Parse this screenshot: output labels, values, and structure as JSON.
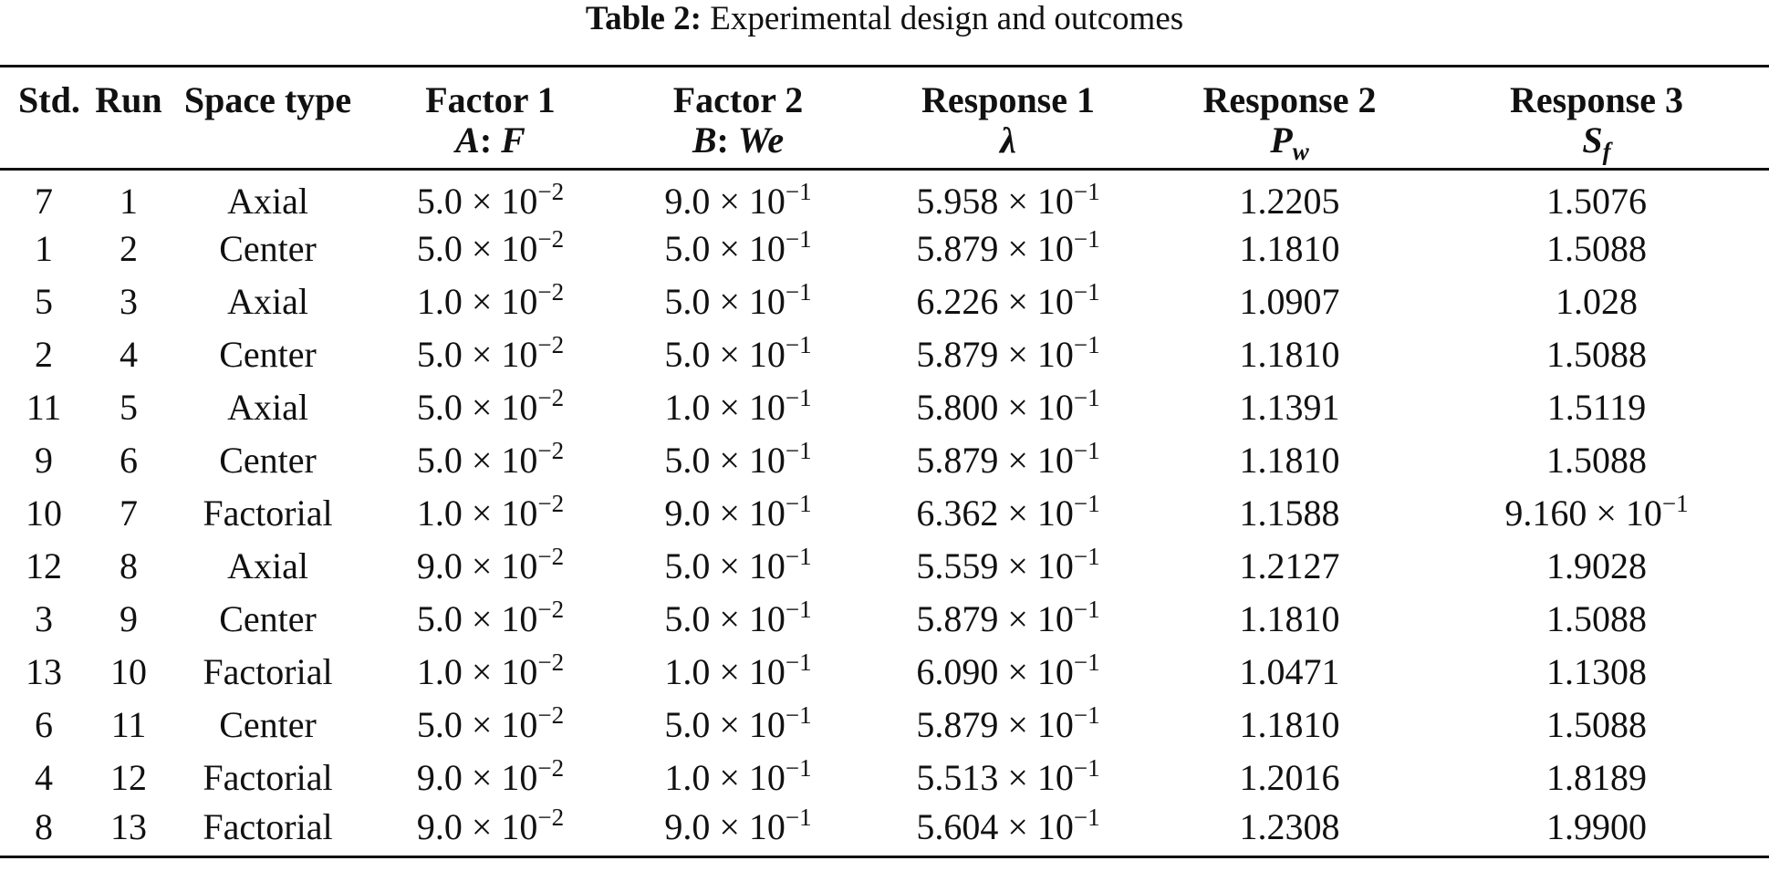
{
  "caption": {
    "label": "Table 2:",
    "text": " Experimental design and outcomes"
  },
  "table": {
    "headers_top": [
      "Std.",
      "Run",
      "Space type",
      "Factor 1",
      "Factor 2",
      "Response 1",
      "Response 2",
      "Response 3"
    ],
    "headers_bottom": [
      {
        "main": "A",
        "sep": ": ",
        "tail": "F",
        "sub": ""
      },
      {
        "main": "B",
        "sep": ": ",
        "tail": "We",
        "sub": ""
      },
      {
        "main": "λ",
        "sep": "",
        "tail": "",
        "sub": ""
      },
      {
        "main": "P",
        "sep": "",
        "tail": "",
        "sub": "w"
      },
      {
        "main": "S",
        "sep": "",
        "tail": "",
        "sub": "f"
      }
    ],
    "rows": [
      {
        "std": "7",
        "run": "1",
        "space": "Axial",
        "f1": "5.0 × 10",
        "f1e": "−2",
        "f2": "9.0 × 10",
        "f2e": "−1",
        "r1": "5.958 × 10",
        "r1e": "−1",
        "r2": "1.2205",
        "r3": "1.5076",
        "r3e": ""
      },
      {
        "std": "1",
        "run": "2",
        "space": "Center",
        "f1": "5.0 × 10",
        "f1e": "−2",
        "f2": "5.0 × 10",
        "f2e": "−1",
        "r1": "5.879 × 10",
        "r1e": "−1",
        "r2": "1.1810",
        "r3": "1.5088",
        "r3e": ""
      },
      {
        "std": "5",
        "run": "3",
        "space": "Axial",
        "f1": "1.0 × 10",
        "f1e": "−2",
        "f2": "5.0 × 10",
        "f2e": "−1",
        "r1": "6.226 × 10",
        "r1e": "−1",
        "r2": "1.0907",
        "r3": "1.028",
        "r3e": ""
      },
      {
        "std": "2",
        "run": "4",
        "space": "Center",
        "f1": "5.0 × 10",
        "f1e": "−2",
        "f2": "5.0 × 10",
        "f2e": "−1",
        "r1": "5.879 × 10",
        "r1e": "−1",
        "r2": "1.1810",
        "r3": "1.5088",
        "r3e": ""
      },
      {
        "std": "11",
        "run": "5",
        "space": "Axial",
        "f1": "5.0 × 10",
        "f1e": "−2",
        "f2": "1.0 × 10",
        "f2e": "−1",
        "r1": "5.800 × 10",
        "r1e": "−1",
        "r2": "1.1391",
        "r3": "1.5119",
        "r3e": ""
      },
      {
        "std": "9",
        "run": "6",
        "space": "Center",
        "f1": "5.0 × 10",
        "f1e": "−2",
        "f2": "5.0 × 10",
        "f2e": "−1",
        "r1": "5.879 × 10",
        "r1e": "−1",
        "r2": "1.1810",
        "r3": "1.5088",
        "r3e": ""
      },
      {
        "std": "10",
        "run": "7",
        "space": "Factorial",
        "f1": "1.0 × 10",
        "f1e": "−2",
        "f2": "9.0 × 10",
        "f2e": "−1",
        "r1": "6.362 × 10",
        "r1e": "−1",
        "r2": "1.1588",
        "r3": "9.160 × 10",
        "r3e": "−1"
      },
      {
        "std": "12",
        "run": "8",
        "space": "Axial",
        "f1": "9.0 × 10",
        "f1e": "−2",
        "f2": "5.0 × 10",
        "f2e": "−1",
        "r1": "5.559 × 10",
        "r1e": "−1",
        "r2": "1.2127",
        "r3": "1.9028",
        "r3e": ""
      },
      {
        "std": "3",
        "run": "9",
        "space": "Center",
        "f1": "5.0 × 10",
        "f1e": "−2",
        "f2": "5.0 × 10",
        "f2e": "−1",
        "r1": "5.879 × 10",
        "r1e": "−1",
        "r2": "1.1810",
        "r3": "1.5088",
        "r3e": ""
      },
      {
        "std": "13",
        "run": "10",
        "space": "Factorial",
        "f1": "1.0 × 10",
        "f1e": "−2",
        "f2": "1.0 × 10",
        "f2e": "−1",
        "r1": "6.090 × 10",
        "r1e": "−1",
        "r2": "1.0471",
        "r3": "1.1308",
        "r3e": ""
      },
      {
        "std": "6",
        "run": "11",
        "space": "Center",
        "f1": "5.0 × 10",
        "f1e": "−2",
        "f2": "5.0 × 10",
        "f2e": "−1",
        "r1": "5.879 × 10",
        "r1e": "−1",
        "r2": "1.1810",
        "r3": "1.5088",
        "r3e": ""
      },
      {
        "std": "4",
        "run": "12",
        "space": "Factorial",
        "f1": "9.0 × 10",
        "f1e": "−2",
        "f2": "1.0 × 10",
        "f2e": "−1",
        "r1": "5.513 × 10",
        "r1e": "−1",
        "r2": "1.2016",
        "r3": "1.8189",
        "r3e": ""
      },
      {
        "std": "8",
        "run": "13",
        "space": "Factorial",
        "f1": "9.0 × 10",
        "f1e": "−2",
        "f2": "9.0 × 10",
        "f2e": "−1",
        "r1": "5.604 × 10",
        "r1e": "−1",
        "r2": "1.2308",
        "r3": "1.9900",
        "r3e": ""
      }
    ]
  }
}
